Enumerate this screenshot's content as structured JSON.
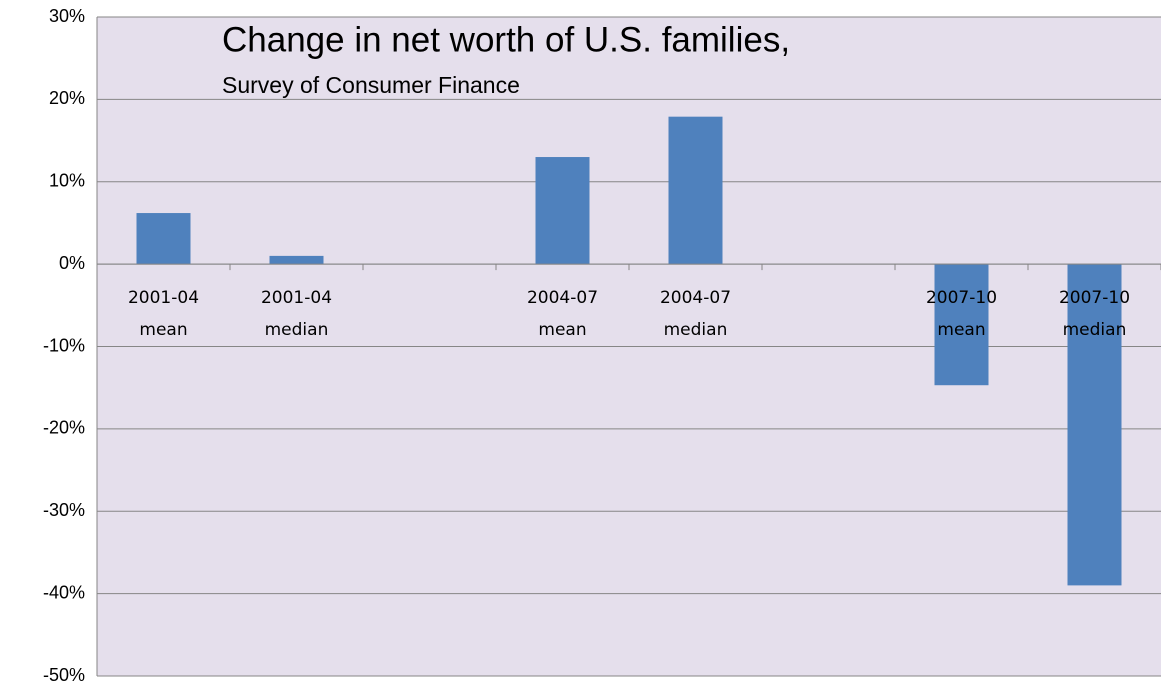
{
  "chart_data": {
    "type": "bar",
    "title": "Change in net worth of U.S. families,",
    "subtitle": "Survey of Consumer Finance",
    "categories": [
      "2001-04\nmean",
      "2001-04\nmedian",
      null,
      "2004-07\nmean",
      "2004-07\nmedian",
      null,
      "2007-10\nmean",
      "2007-10\nmedian"
    ],
    "values": [
      6.2,
      1.0,
      null,
      13.0,
      17.9,
      null,
      -14.7,
      -39.0
    ],
    "color": "#4f81bd",
    "ylim": [
      -50,
      30
    ],
    "yticks": [
      {
        "value": 30,
        "label": "30%"
      },
      {
        "value": 20,
        "label": "20%"
      },
      {
        "value": 10,
        "label": "10%"
      },
      {
        "value": 0,
        "label": "0%"
      },
      {
        "value": -10,
        "label": "-10%"
      },
      {
        "value": -20,
        "label": "-20%"
      },
      {
        "value": -30,
        "label": "-30%"
      },
      {
        "value": -40,
        "label": "-40%"
      },
      {
        "value": -50,
        "label": "-50%"
      }
    ],
    "grid": true
  }
}
